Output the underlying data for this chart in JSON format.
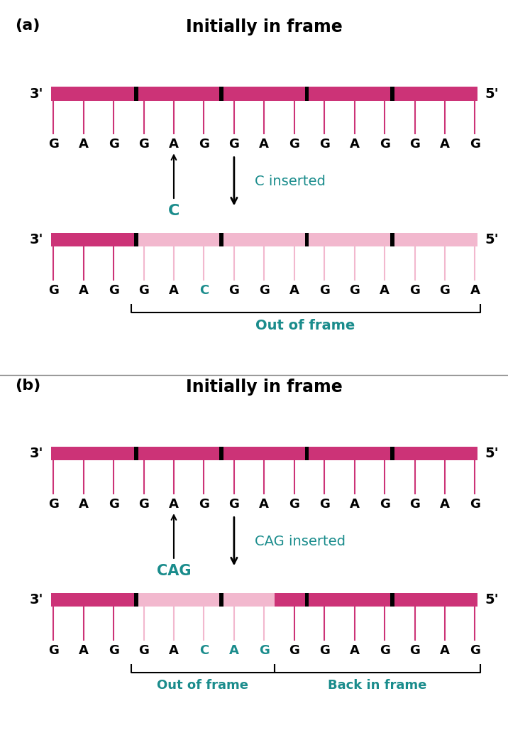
{
  "bg_color": "#ffffff",
  "pink_dark": "#cc3377",
  "pink_light": "#f2b8ce",
  "teal": "#1a8c8c",
  "figsize": [
    7.16,
    10.56
  ],
  "dpi": 100,
  "section_a": {
    "label": "(a)",
    "title": "Initially in frame",
    "bar1_bases": [
      "G",
      "A",
      "G",
      "G",
      "A",
      "G",
      "G",
      "A",
      "G",
      "G",
      "A",
      "G",
      "G",
      "A",
      "G"
    ],
    "bar2_bases": [
      "G",
      "A",
      "G",
      "G",
      "A",
      "C",
      "G",
      "G",
      "A",
      "G",
      "G",
      "A",
      "G",
      "G",
      "A"
    ],
    "bar2_base_colors": [
      "k",
      "k",
      "k",
      "k",
      "k",
      "#1a8c8c",
      "k",
      "k",
      "k",
      "k",
      "k",
      "k",
      "k",
      "k",
      "k"
    ],
    "insert_letter": "C",
    "insert_label": "C inserted",
    "out_of_frame_label": "Out of frame"
  },
  "section_b": {
    "label": "(b)",
    "title": "Initially in frame",
    "bar1_bases": [
      "G",
      "A",
      "G",
      "G",
      "A",
      "G",
      "G",
      "A",
      "G",
      "G",
      "A",
      "G",
      "G",
      "A",
      "G"
    ],
    "bar2_bases": [
      "G",
      "A",
      "G",
      "G",
      "A",
      "C",
      "A",
      "G",
      "G",
      "G",
      "A",
      "G",
      "G",
      "A",
      "G"
    ],
    "bar2_base_colors": [
      "k",
      "k",
      "k",
      "k",
      "k",
      "#1a8c8c",
      "#1a8c8c",
      "#1a8c8c",
      "k",
      "k",
      "k",
      "k",
      "k",
      "k",
      "k"
    ],
    "insert_letter": "CAG",
    "insert_label": "CAG inserted",
    "out_of_frame_label": "Out of frame",
    "back_in_frame_label": "Back in frame"
  }
}
